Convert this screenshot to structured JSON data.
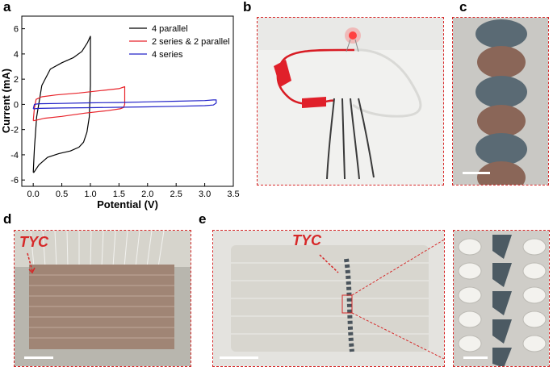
{
  "panels": {
    "a": "a",
    "b": "b",
    "c": "c",
    "d": "d",
    "e": "e"
  },
  "annotations": {
    "d_label": "TYC",
    "e_label": "TYC"
  },
  "colors": {
    "accent": "#d62828"
  },
  "chart_data": {
    "type": "line",
    "xlabel": "Potential (V)",
    "ylabel": "Current (mA)",
    "xlim": [
      -0.2,
      3.5
    ],
    "ylim": [
      -6.5,
      7
    ],
    "xticks": [
      0.0,
      0.5,
      1.0,
      1.5,
      2.0,
      2.5,
      3.0,
      3.5
    ],
    "xtick_labels": [
      "0.0",
      "0.5",
      "1.0",
      "1.5",
      "2.0",
      "2.5",
      "3.0",
      "3.5"
    ],
    "yticks": [
      -6,
      -4,
      -2,
      0,
      2,
      4,
      6
    ],
    "ytick_labels": [
      "-6",
      "-4",
      "-2",
      "0",
      "2",
      "4",
      "6"
    ],
    "grid": false,
    "legend_position": "top-right",
    "series": [
      {
        "name": "4 parallel",
        "color": "#000000",
        "x": [
          0.0,
          0.02,
          0.06,
          0.15,
          0.3,
          0.5,
          0.7,
          0.85,
          0.95,
          1.0,
          1.0,
          0.98,
          0.94,
          0.88,
          0.8,
          0.65,
          0.45,
          0.25,
          0.1,
          0.04,
          0.01,
          0.0
        ],
        "y": [
          -5.4,
          -3.5,
          -1.0,
          1.5,
          2.8,
          3.3,
          3.7,
          4.2,
          4.9,
          5.4,
          1.5,
          -1.0,
          -2.2,
          -3.0,
          -3.4,
          -3.7,
          -3.9,
          -4.2,
          -4.8,
          -5.2,
          -5.4,
          -5.4
        ]
      },
      {
        "name": "2 series & 2 parallel",
        "color": "#e8232a",
        "x": [
          0.0,
          0.02,
          0.05,
          0.15,
          0.4,
          0.8,
          1.2,
          1.5,
          1.6,
          1.6,
          1.58,
          1.52,
          1.3,
          0.9,
          0.5,
          0.2,
          0.06,
          0.0
        ],
        "y": [
          -1.3,
          -0.3,
          0.4,
          0.6,
          0.75,
          0.9,
          1.1,
          1.25,
          1.4,
          0.0,
          -0.25,
          -0.35,
          -0.5,
          -0.7,
          -0.95,
          -1.1,
          -1.25,
          -1.3
        ]
      },
      {
        "name": "4 series",
        "color": "#2323c8",
        "x": [
          0.0,
          0.02,
          0.1,
          0.5,
          1.0,
          1.5,
          2.0,
          2.5,
          3.0,
          3.15,
          3.2,
          3.2,
          3.15,
          3.0,
          2.5,
          2.0,
          1.5,
          1.0,
          0.5,
          0.1,
          0.02,
          0.0
        ],
        "y": [
          -0.35,
          0.0,
          0.05,
          0.08,
          0.12,
          0.15,
          0.2,
          0.25,
          0.3,
          0.35,
          0.35,
          0.1,
          -0.05,
          -0.1,
          -0.15,
          -0.2,
          -0.23,
          -0.26,
          -0.29,
          -0.32,
          -0.35,
          -0.35
        ]
      }
    ]
  }
}
